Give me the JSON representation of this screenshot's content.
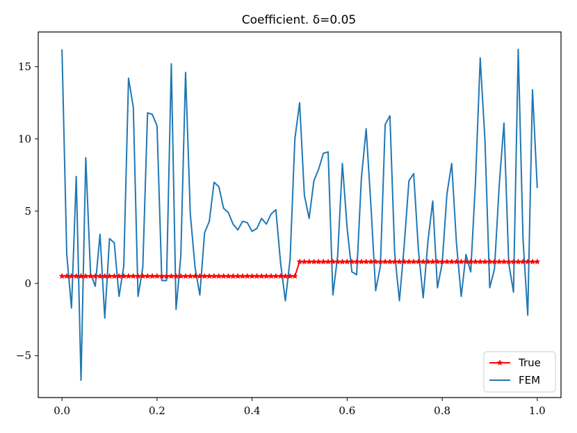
{
  "chart_data": {
    "type": "line",
    "title": "Coefficient. δ=0.05",
    "xlabel": "",
    "ylabel": "",
    "xlim": [
      -0.05,
      1.05
    ],
    "ylim": [
      -7.9,
      17.4
    ],
    "xticks": [
      0.0,
      0.2,
      0.4,
      0.6,
      0.8,
      1.0
    ],
    "xtick_labels": [
      "0.0",
      "0.2",
      "0.4",
      "0.6",
      "0.8",
      "1.0"
    ],
    "yticks": [
      -5,
      0,
      5,
      10,
      15
    ],
    "ytick_labels": [
      "−5",
      "0",
      "5",
      "10",
      "15"
    ],
    "grid": false,
    "legend_position": "lower-right",
    "series": [
      {
        "name": "True",
        "color": "#ff0000",
        "marker": "star",
        "x": [
          0.0,
          0.01,
          0.02,
          0.03,
          0.04,
          0.05,
          0.06,
          0.07,
          0.08,
          0.09,
          0.1,
          0.11,
          0.12,
          0.13,
          0.14,
          0.15,
          0.16,
          0.17,
          0.18,
          0.19,
          0.2,
          0.21,
          0.22,
          0.23,
          0.24,
          0.25,
          0.26,
          0.27,
          0.28,
          0.29,
          0.3,
          0.31,
          0.32,
          0.33,
          0.34,
          0.35,
          0.36,
          0.37,
          0.38,
          0.39,
          0.4,
          0.41,
          0.42,
          0.43,
          0.44,
          0.45,
          0.46,
          0.47,
          0.48,
          0.49,
          0.5,
          0.51,
          0.52,
          0.53,
          0.54,
          0.55,
          0.56,
          0.57,
          0.58,
          0.59,
          0.6,
          0.61,
          0.62,
          0.63,
          0.64,
          0.65,
          0.66,
          0.67,
          0.68,
          0.69,
          0.7,
          0.71,
          0.72,
          0.73,
          0.74,
          0.75,
          0.76,
          0.77,
          0.78,
          0.79,
          0.8,
          0.81,
          0.82,
          0.83,
          0.84,
          0.85,
          0.86,
          0.87,
          0.88,
          0.89,
          0.9,
          0.91,
          0.92,
          0.93,
          0.94,
          0.95,
          0.96,
          0.97,
          0.98,
          0.99,
          1.0
        ],
        "y": [
          0.5,
          0.5,
          0.5,
          0.5,
          0.5,
          0.5,
          0.5,
          0.5,
          0.5,
          0.5,
          0.5,
          0.5,
          0.5,
          0.5,
          0.5,
          0.5,
          0.5,
          0.5,
          0.5,
          0.5,
          0.5,
          0.5,
          0.5,
          0.5,
          0.5,
          0.5,
          0.5,
          0.5,
          0.5,
          0.5,
          0.5,
          0.5,
          0.5,
          0.5,
          0.5,
          0.5,
          0.5,
          0.5,
          0.5,
          0.5,
          0.5,
          0.5,
          0.5,
          0.5,
          0.5,
          0.5,
          0.5,
          0.5,
          0.5,
          0.5,
          1.5,
          1.5,
          1.5,
          1.5,
          1.5,
          1.5,
          1.5,
          1.5,
          1.5,
          1.5,
          1.5,
          1.5,
          1.5,
          1.5,
          1.5,
          1.5,
          1.5,
          1.5,
          1.5,
          1.5,
          1.5,
          1.5,
          1.5,
          1.5,
          1.5,
          1.5,
          1.5,
          1.5,
          1.5,
          1.5,
          1.5,
          1.5,
          1.5,
          1.5,
          1.5,
          1.5,
          1.5,
          1.5,
          1.5,
          1.5,
          1.5,
          1.5,
          1.5,
          1.5,
          1.5,
          1.5,
          1.5,
          1.5,
          1.5,
          1.5,
          1.5
        ]
      },
      {
        "name": "FEM",
        "color": "#1f77b4",
        "marker": "none",
        "x": [
          0.0,
          0.01,
          0.02,
          0.03,
          0.04,
          0.05,
          0.06,
          0.07,
          0.08,
          0.09,
          0.1,
          0.11,
          0.12,
          0.13,
          0.14,
          0.15,
          0.16,
          0.17,
          0.18,
          0.19,
          0.2,
          0.21,
          0.22,
          0.23,
          0.24,
          0.25,
          0.26,
          0.27,
          0.28,
          0.29,
          0.3,
          0.31,
          0.32,
          0.33,
          0.34,
          0.35,
          0.36,
          0.37,
          0.38,
          0.39,
          0.4,
          0.41,
          0.42,
          0.43,
          0.44,
          0.45,
          0.46,
          0.47,
          0.48,
          0.49,
          0.5,
          0.51,
          0.52,
          0.53,
          0.54,
          0.55,
          0.56,
          0.57,
          0.58,
          0.59,
          0.6,
          0.61,
          0.62,
          0.63,
          0.64,
          0.65,
          0.66,
          0.67,
          0.68,
          0.69,
          0.7,
          0.71,
          0.72,
          0.73,
          0.74,
          0.75,
          0.76,
          0.77,
          0.78,
          0.79,
          0.8,
          0.81,
          0.82,
          0.83,
          0.84,
          0.85,
          0.86,
          0.87,
          0.88,
          0.89,
          0.9,
          0.91,
          0.92,
          0.93,
          0.94,
          0.95,
          0.96,
          0.97,
          0.98,
          0.99,
          1.0
        ],
        "y": [
          16.2,
          2.0,
          -1.7,
          7.4,
          -6.7,
          8.7,
          0.7,
          -0.2,
          3.4,
          -2.4,
          3.1,
          2.8,
          -0.9,
          1.2,
          14.2,
          12.2,
          -0.9,
          1.1,
          11.8,
          11.7,
          10.9,
          0.2,
          0.2,
          15.2,
          -1.8,
          1.9,
          14.6,
          4.8,
          1.1,
          -0.8,
          3.5,
          4.3,
          7.0,
          6.7,
          5.2,
          4.9,
          4.1,
          3.7,
          4.3,
          4.2,
          3.6,
          3.8,
          4.5,
          4.1,
          4.8,
          5.1,
          1.4,
          -1.2,
          1.7,
          10.0,
          12.5,
          6.1,
          4.5,
          7.1,
          7.9,
          9.0,
          9.1,
          -0.8,
          1.9,
          8.3,
          3.8,
          0.8,
          0.6,
          7.3,
          10.7,
          5.4,
          -0.5,
          1.2,
          11.0,
          11.6,
          2.1,
          -1.2,
          2.6,
          7.1,
          7.6,
          2.3,
          -1.0,
          2.9,
          5.7,
          -0.3,
          1.4,
          6.2,
          8.3,
          2.8,
          -0.9,
          2.0,
          0.8,
          7.0,
          15.6,
          9.9,
          -0.3,
          1.0,
          6.8,
          11.1,
          1.4,
          -0.6,
          16.2,
          3.1,
          -2.2,
          13.4,
          6.6
        ]
      }
    ]
  }
}
